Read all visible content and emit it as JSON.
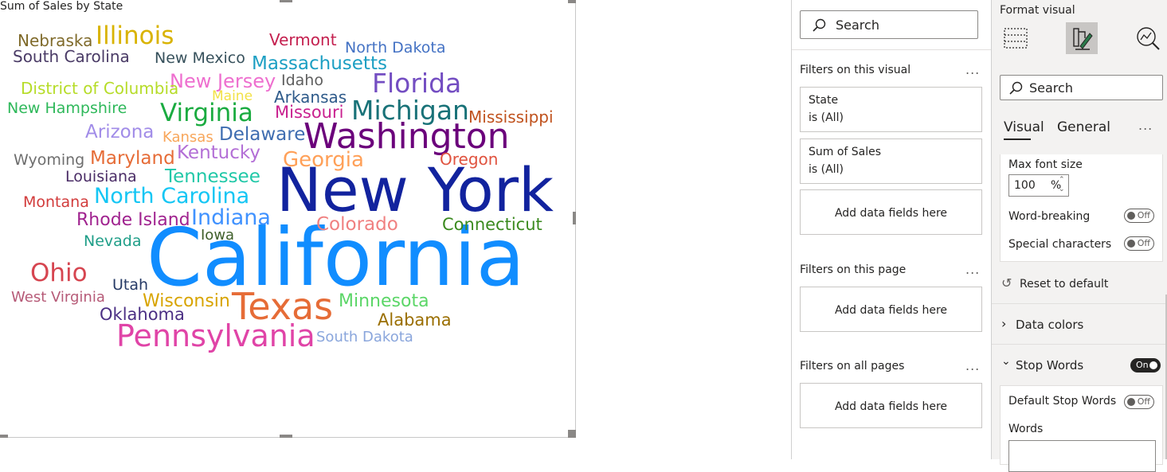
{
  "visual": {
    "title": "Sum of Sales by State",
    "words": [
      {
        "text": "California",
        "color": "#118DFF"
      },
      {
        "text": "New York",
        "color": "#12239E"
      },
      {
        "text": "Texas",
        "color": "#E66C37"
      },
      {
        "text": "Washington",
        "color": "#6B007B"
      },
      {
        "text": "Pennsylvania",
        "color": "#E044A7"
      },
      {
        "text": "Florida",
        "color": "#744EC2"
      },
      {
        "text": "Michigan",
        "color": "#197278"
      },
      {
        "text": "Illinois",
        "color": "#D9B300"
      },
      {
        "text": "Ohio",
        "color": "#D64550"
      },
      {
        "text": "Virginia",
        "color": "#1AAB40"
      },
      {
        "text": "North Carolina",
        "color": "#15C6F4"
      },
      {
        "text": "Indiana",
        "color": "#4092FF"
      },
      {
        "text": "Georgia",
        "color": "#FFA058"
      },
      {
        "text": "Massachusetts",
        "color": "#1C9FC3"
      },
      {
        "text": "New Jersey",
        "color": "#EE6FCF"
      },
      {
        "text": "Delaware",
        "color": "#3F6DB1"
      },
      {
        "text": "Kentucky",
        "color": "#B36FD6"
      },
      {
        "text": "Colorado",
        "color": "#F08080"
      },
      {
        "text": "Arizona",
        "color": "#A18CE8"
      },
      {
        "text": "Maryland",
        "color": "#E66C37"
      },
      {
        "text": "Tennessee",
        "color": "#21C8A8"
      },
      {
        "text": "Rhode Island",
        "color": "#A0238F"
      },
      {
        "text": "Connecticut",
        "color": "#3B8A1F"
      },
      {
        "text": "Minnesota",
        "color": "#5BD667"
      },
      {
        "text": "Wisconsin",
        "color": "#D8A400"
      },
      {
        "text": "Mississippi",
        "color": "#C0521D"
      },
      {
        "text": "Oregon",
        "color": "#E0533F"
      },
      {
        "text": "Missouri",
        "color": "#C9218F"
      },
      {
        "text": "Arkansas",
        "color": "#2E5A8A"
      },
      {
        "text": "Alabama",
        "color": "#9A6E00"
      },
      {
        "text": "Oklahoma",
        "color": "#4B2F84"
      },
      {
        "text": "Vermont",
        "color": "#C4204F"
      },
      {
        "text": "North Dakota",
        "color": "#4472C4"
      },
      {
        "text": "Nebraska",
        "color": "#7F6A2A"
      },
      {
        "text": "South Carolina",
        "color": "#4A3B66"
      },
      {
        "text": "New Mexico",
        "color": "#37515C"
      },
      {
        "text": "District of Columbia",
        "color": "#B6DC28"
      },
      {
        "text": "New Hampshire",
        "color": "#2EB85A"
      },
      {
        "text": "Idaho",
        "color": "#5E5E5E"
      },
      {
        "text": "Maine",
        "color": "#F2E146"
      },
      {
        "text": "Kansas",
        "color": "#F8A65A"
      },
      {
        "text": "Wyoming",
        "color": "#6E6E6E"
      },
      {
        "text": "Louisiana",
        "color": "#4A2C66"
      },
      {
        "text": "Montana",
        "color": "#D23B3B"
      },
      {
        "text": "Nevada",
        "color": "#1F9E88"
      },
      {
        "text": "Iowa",
        "color": "#3F5F2A"
      },
      {
        "text": "Utah",
        "color": "#263A66"
      },
      {
        "text": "West Virginia",
        "color": "#B65A77"
      },
      {
        "text": "South Dakota",
        "color": "#8AA6DC"
      }
    ]
  },
  "filters": {
    "search_placeholder": "Search",
    "on_visual": "Filters on this visual",
    "state_label": "State",
    "state_value": "is (All)",
    "sales_label": "Sum of Sales",
    "sales_value": "is (All)",
    "add_fields": "Add data fields here",
    "on_page": "Filters on this page",
    "on_all": "Filters on all pages",
    "more": "..."
  },
  "format": {
    "title": "Format visual",
    "search_placeholder": "Search",
    "tab_visual": "Visual",
    "tab_general": "General",
    "more": "...",
    "max_font_label": "Max font size",
    "max_font_value": "100",
    "max_font_unit": "%",
    "word_breaking": "Word-breaking",
    "special_chars": "Special characters",
    "off": "Off",
    "on": "On",
    "reset": "Reset to default",
    "data_colors": "Data colors",
    "stop_words": "Stop Words",
    "default_stop_words": "Default Stop Words",
    "words": "Words"
  }
}
